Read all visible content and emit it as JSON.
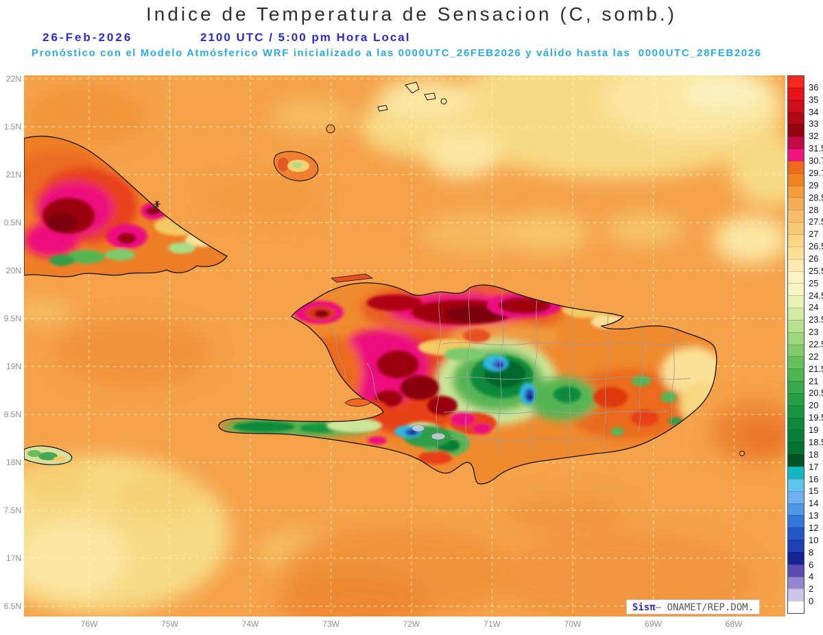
{
  "page_title": "Indice de Temperatura de Sensacion (C, somb.)",
  "header": {
    "date": "26-Feb-2026",
    "time_line": "2100 UTC / 5:00 pm Hora Local",
    "forecast_line": "Pronóstico con el Modelo Atmósferico WRF inicializado a las 0000UTC_26FEB2026 y válido hasta las  0000UTC_28FEB2026"
  },
  "watermark": {
    "brand": "Sisπ",
    "text": "— ONAMET/REP.DOM."
  },
  "colors": {
    "header_blue": "#2a2acd",
    "header_cyan": "#29abe2",
    "ocean_base": "#F5A24A",
    "coastline": "#101010",
    "grid_dash": "#FFF2B0",
    "province_border_gray": "#9C9C9C",
    "axis_label_gray": "#8f8f8f"
  },
  "chart_data": {
    "type": "heatmap",
    "title": "Indice de Temperatura de Sensacion (C, somb.)",
    "units": "C (sombra)",
    "model": "WRF",
    "initialized": "0000UTC_26FEB2026",
    "valid_until": "0000UTC_28FEB2026",
    "valid_at": "26-Feb-2026 2100 UTC / 5:00 pm Hora Local",
    "x_ticks": [
      "76W",
      "75W",
      "74W",
      "73W",
      "72W",
      "71W",
      "70W",
      "69W",
      "68W"
    ],
    "y_ticks": [
      "22N",
      "1.5N",
      "21N",
      "0.5N",
      "20N",
      "9.5N",
      "19N",
      "8.5N",
      "18N",
      "7.5N",
      "17N",
      "6.5N"
    ],
    "legend_position": "right",
    "grid": "dashed lat/lon graticule",
    "colorbar": {
      "labels": [
        "36",
        "35",
        "34",
        "33",
        "32",
        "31.5",
        "30.7",
        "29.7",
        "29",
        "28.5",
        "28",
        "27.5",
        "27",
        "26.5",
        "26",
        "25.5",
        "25",
        "24.5",
        "24",
        "23.5",
        "23",
        "22.5",
        "22",
        "21.5",
        "21",
        "20.5",
        "20",
        "19.5",
        "19",
        "18.5",
        "18",
        "17",
        "16",
        "15",
        "14",
        "13",
        "12",
        "10",
        "8",
        "6",
        "4",
        "2",
        "0"
      ],
      "colors": [
        "#F5291B",
        "#E8121C",
        "#D00D18",
        "#B20714",
        "#930310",
        "#C40A45",
        "#F0147E",
        "#ED6A1E",
        "#F0821F",
        "#F49C3E",
        "#F6AC55",
        "#F8BC6B",
        "#F9C873",
        "#FAD584",
        "#FBE096",
        "#FCEAAC",
        "#FDF2C2",
        "#F7F5C6",
        "#E9F2B4",
        "#D3EAA2",
        "#B9E08F",
        "#9ED67D",
        "#82CB6C",
        "#67C05C",
        "#4EB550",
        "#39AA4A",
        "#279F45",
        "#189540",
        "#0E8A3B",
        "#077F36",
        "#03742F",
        "#035224",
        "#12B7C0",
        "#5FC6EC",
        "#6FB0F0",
        "#4F95E8",
        "#3377DA",
        "#2457C6",
        "#1C3FB2",
        "#152492",
        "#5D4BB4",
        "#9486D0",
        "#CCC5EA",
        "#FEFEFE"
      ]
    },
    "field_summary": [
      {
        "region": "Open ocean (Atlantic and Caribbean)",
        "heat_index_c": "28-29.7"
      },
      {
        "region": "Pale-yellow ocean patches NE Atlantic and SW of Jamaica",
        "heat_index_c": "26-28"
      },
      {
        "region": "Eastern Cuba interior (hot cores)",
        "heat_index_c": "31.5-36"
      },
      {
        "region": "Eastern Cuba southern valleys (green pockets)",
        "heat_index_c": "21-26"
      },
      {
        "region": "North coast and Cibao valley, Dominican Republic (hottest band)",
        "heat_index_c": "32-36"
      },
      {
        "region": "Central and Artibonite Haiti lowlands",
        "heat_index_c": "30.7-34"
      },
      {
        "region": "Cordillera Central peaks, DR (coolest, blue/cyan)",
        "heat_index_c": "6-16"
      },
      {
        "region": "Massif de la Selle / Sierra de Bahoruco / Tiburon peninsula ridge",
        "heat_index_c": "12-25"
      },
      {
        "region": "Eastern DR plains",
        "heat_index_c": "29.7-31.5"
      },
      {
        "region": "Jamaica east tip",
        "heat_index_c": "21-27"
      }
    ]
  }
}
